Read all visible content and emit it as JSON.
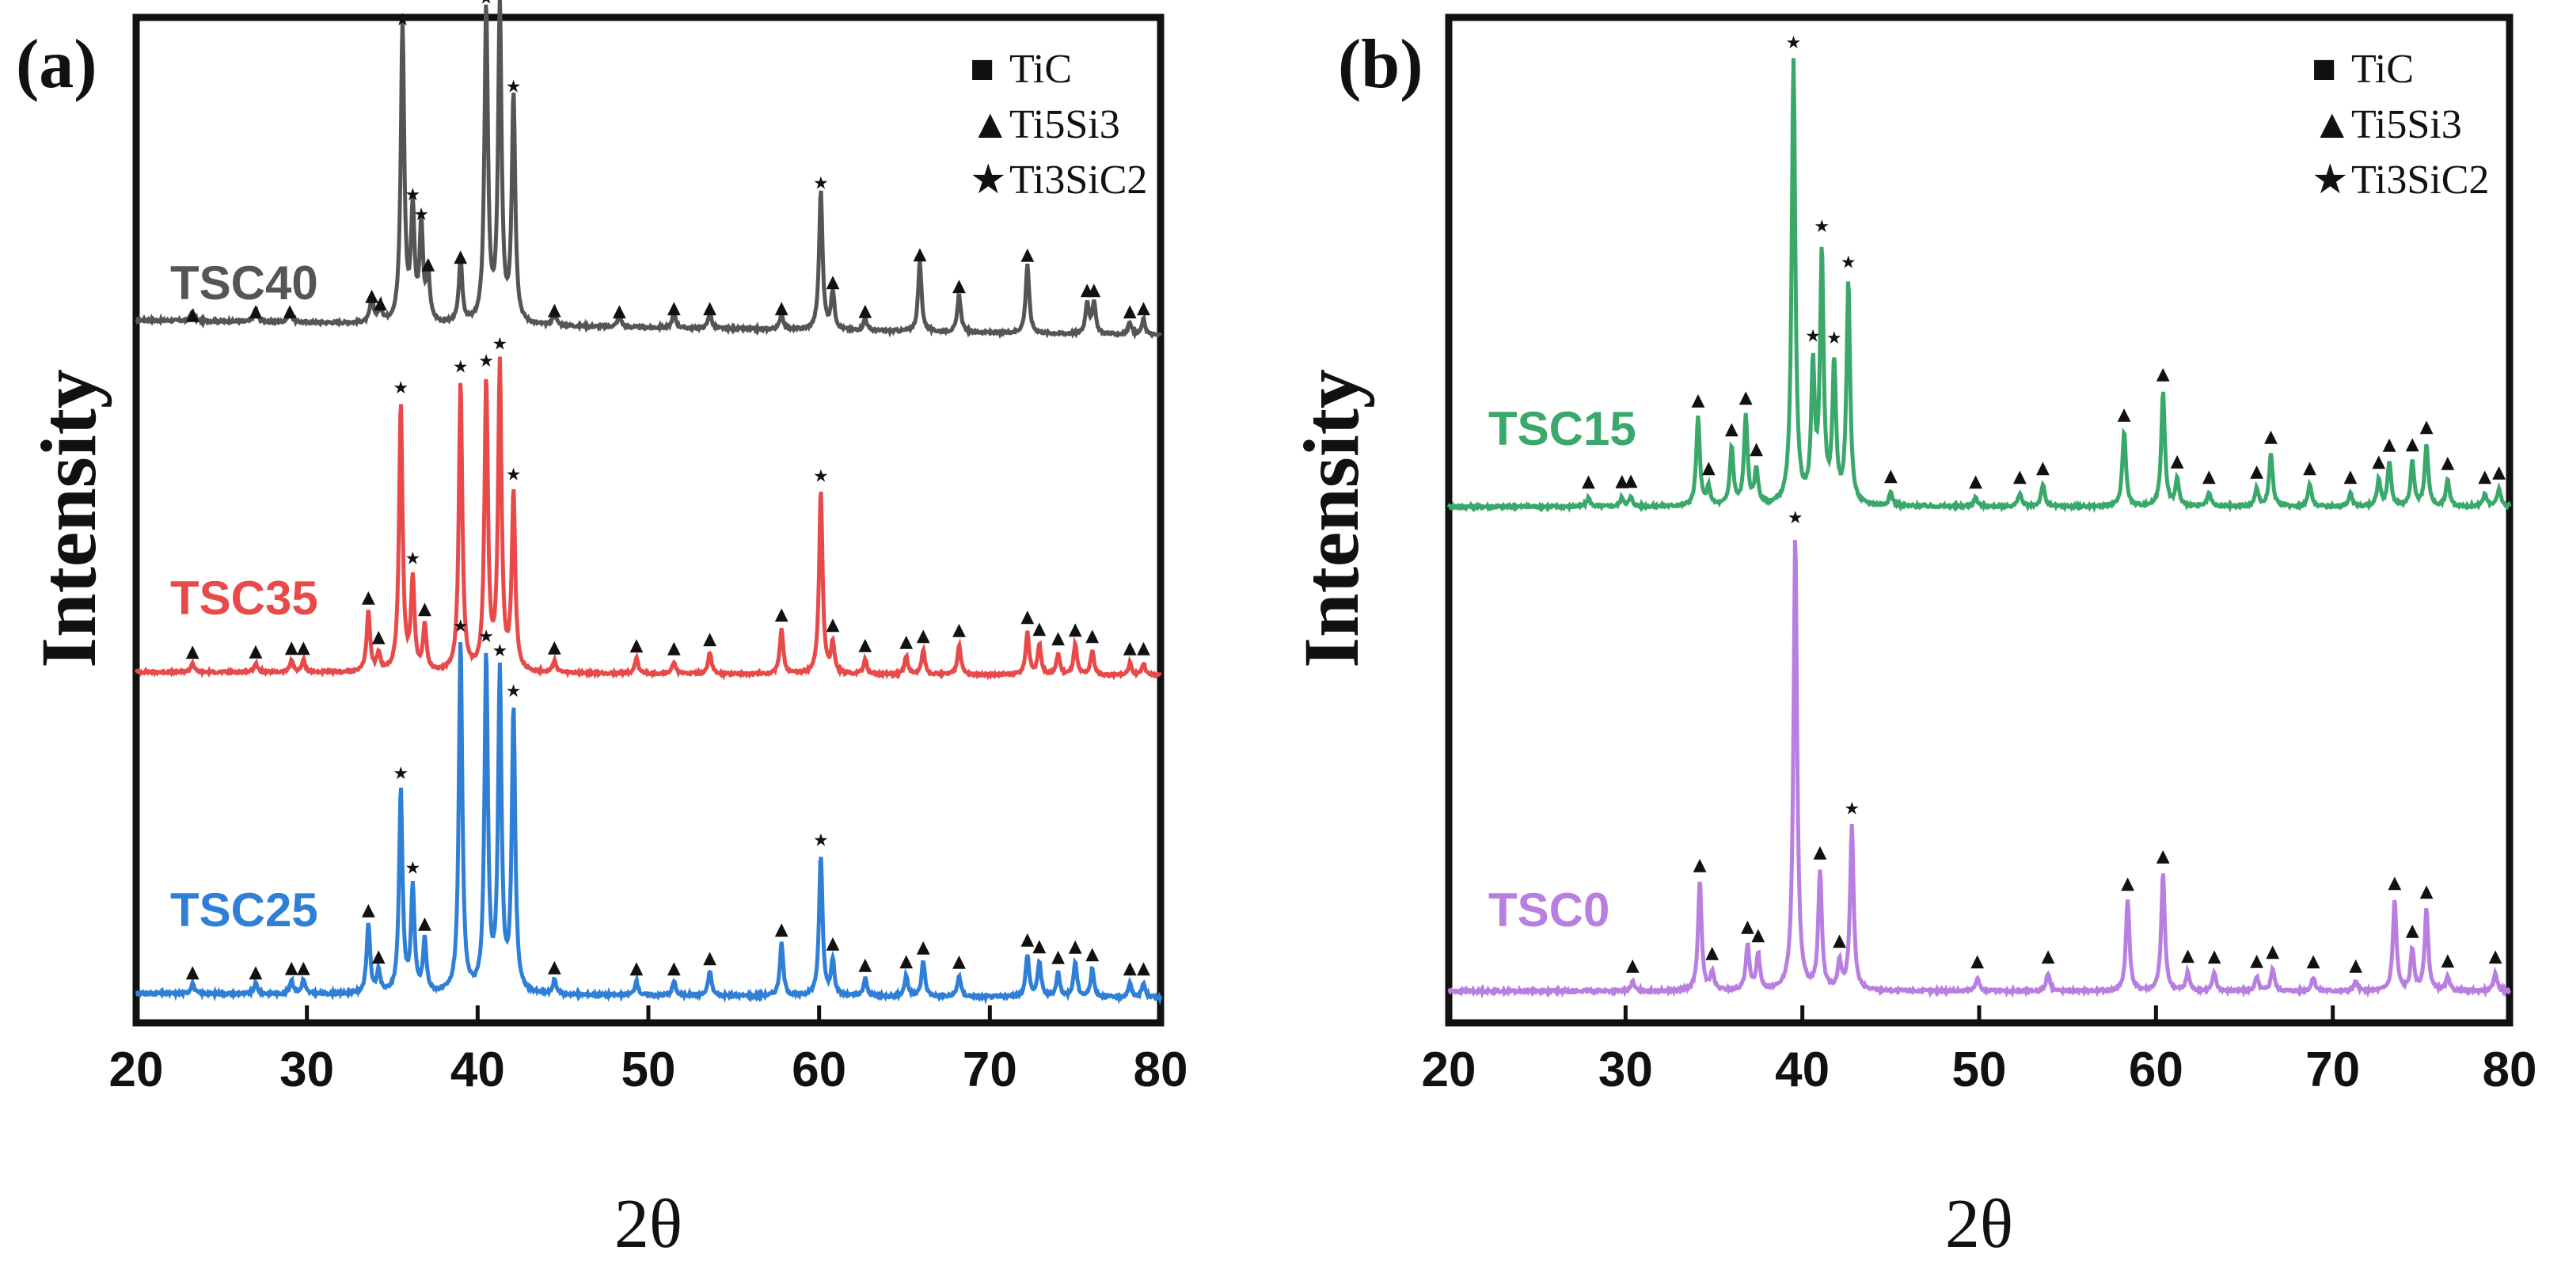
{
  "figure": {
    "panel_a_label": "(a)",
    "panel_b_label": "(b)"
  },
  "legend": {
    "tic": "TiC",
    "ti5si3": "Ti5Si3",
    "ti3sic2": "Ti3SiC2"
  },
  "markers": {
    "square": "■",
    "triangle": "▲",
    "star": "★"
  },
  "chart_data": [
    {
      "type": "line",
      "panel": "(a)",
      "xlabel": "2θ",
      "ylabel": "Intensity",
      "xlim": [
        20,
        80
      ],
      "xticks": [
        20,
        30,
        40,
        50,
        60,
        70,
        80
      ],
      "legend_placement": "top-right",
      "series": [
        {
          "name": "TSC40",
          "color": "#555555",
          "baseline": 0.08,
          "noise": 0.008,
          "peaks": [
            [
              23.3,
              0.03
            ],
            [
              27,
              0.04
            ],
            [
              29,
              0.04
            ],
            [
              33.8,
              0.08
            ],
            [
              34.3,
              0.05
            ],
            [
              35.6,
              0.94
            ],
            [
              36.2,
              0.35
            ],
            [
              36.7,
              0.3
            ],
            [
              37.1,
              0.15
            ],
            [
              39,
              0.2
            ],
            [
              40.5,
              1.0
            ],
            [
              41.3,
              1.0
            ],
            [
              42.1,
              0.72
            ],
            [
              44.5,
              0.04
            ],
            [
              48.3,
              0.04
            ],
            [
              51.5,
              0.05
            ],
            [
              53.6,
              0.05
            ],
            [
              57.8,
              0.05
            ],
            [
              60.1,
              0.44
            ],
            [
              60.8,
              0.12
            ],
            [
              62.7,
              0.04
            ],
            [
              65.9,
              0.22
            ],
            [
              68.2,
              0.12
            ],
            [
              72.2,
              0.22
            ],
            [
              75.7,
              0.1
            ],
            [
              76.1,
              0.1
            ],
            [
              78.2,
              0.04
            ],
            [
              79,
              0.05
            ]
          ]
        },
        {
          "name": "TSC35",
          "color": "#e84a4a",
          "baseline": 0.02,
          "noise": 0.008,
          "peaks": [
            [
              23.3,
              0.03
            ],
            [
              27,
              0.03
            ],
            [
              29.1,
              0.04
            ],
            [
              29.8,
              0.04
            ],
            [
              33.6,
              0.2
            ],
            [
              34.2,
              0.06
            ],
            [
              35.5,
              0.88
            ],
            [
              36.2,
              0.3
            ],
            [
              36.9,
              0.15
            ],
            [
              39,
              0.95
            ],
            [
              40.5,
              0.95
            ],
            [
              41.3,
              1.0
            ],
            [
              42.1,
              0.58
            ],
            [
              44.5,
              0.04
            ],
            [
              49.3,
              0.05
            ],
            [
              51.5,
              0.04
            ],
            [
              53.6,
              0.07
            ],
            [
              57.8,
              0.15
            ],
            [
              60.1,
              0.6
            ],
            [
              60.8,
              0.1
            ],
            [
              62.7,
              0.05
            ],
            [
              65.1,
              0.06
            ],
            [
              66.1,
              0.08
            ],
            [
              68.2,
              0.1
            ],
            [
              72.2,
              0.14
            ],
            [
              72.9,
              0.1
            ],
            [
              74,
              0.07
            ],
            [
              75,
              0.1
            ],
            [
              76,
              0.08
            ],
            [
              78.2,
              0.04
            ],
            [
              79,
              0.04
            ]
          ]
        },
        {
          "name": "TSC25",
          "color": "#2f7fd6",
          "baseline": 0.02,
          "noise": 0.008,
          "peaks": [
            [
              23.3,
              0.03
            ],
            [
              27,
              0.03
            ],
            [
              29.1,
              0.04
            ],
            [
              29.8,
              0.04
            ],
            [
              33.6,
              0.2
            ],
            [
              34.2,
              0.06
            ],
            [
              35.5,
              0.58
            ],
            [
              36.2,
              0.3
            ],
            [
              36.9,
              0.15
            ],
            [
              39,
              1.0
            ],
            [
              40.5,
              0.95
            ],
            [
              41.3,
              0.9
            ],
            [
              42.1,
              0.8
            ],
            [
              44.5,
              0.04
            ],
            [
              49.3,
              0.04
            ],
            [
              51.5,
              0.04
            ],
            [
              53.6,
              0.07
            ],
            [
              57.8,
              0.15
            ],
            [
              60.1,
              0.4
            ],
            [
              60.8,
              0.1
            ],
            [
              62.7,
              0.05
            ],
            [
              65.1,
              0.06
            ],
            [
              66.1,
              0.1
            ],
            [
              68.2,
              0.06
            ],
            [
              72.2,
              0.12
            ],
            [
              72.9,
              0.1
            ],
            [
              74,
              0.07
            ],
            [
              75,
              0.1
            ],
            [
              76,
              0.08
            ],
            [
              78.2,
              0.04
            ],
            [
              79,
              0.04
            ]
          ]
        }
      ]
    },
    {
      "type": "line",
      "panel": "(b)",
      "xlabel": "2θ",
      "ylabel": "Intensity",
      "xlim": [
        20,
        80
      ],
      "xticks": [
        20,
        30,
        40,
        50,
        60,
        70,
        80
      ],
      "legend_placement": "top-right",
      "series": [
        {
          "name": "TSC15",
          "color": "#3aa86b",
          "baseline": 0.0,
          "noise": 0.006,
          "peaks": [
            [
              27.9,
              0.02
            ],
            [
              29.8,
              0.02
            ],
            [
              30.3,
              0.02
            ],
            [
              34.1,
              0.2
            ],
            [
              34.7,
              0.04
            ],
            [
              36,
              0.13
            ],
            [
              36.8,
              0.2
            ],
            [
              37.4,
              0.08
            ],
            [
              39.5,
              1.0
            ],
            [
              40.6,
              0.3
            ],
            [
              41.1,
              0.56
            ],
            [
              41.8,
              0.31
            ],
            [
              42.6,
              0.5
            ],
            [
              45,
              0.03
            ],
            [
              49.8,
              0.02
            ],
            [
              52.3,
              0.03
            ],
            [
              53.6,
              0.05
            ],
            [
              58.2,
              0.17
            ],
            [
              60.4,
              0.26
            ],
            [
              61.2,
              0.06
            ],
            [
              63,
              0.03
            ],
            [
              65.7,
              0.04
            ],
            [
              66.5,
              0.12
            ],
            [
              68.7,
              0.05
            ],
            [
              71,
              0.03
            ],
            [
              72.6,
              0.06
            ],
            [
              73.2,
              0.1
            ],
            [
              74.5,
              0.1
            ],
            [
              75.3,
              0.14
            ],
            [
              76.5,
              0.06
            ],
            [
              78.6,
              0.03
            ],
            [
              79.4,
              0.04
            ]
          ]
        },
        {
          "name": "TSC0",
          "color": "#b97fe0",
          "baseline": 0.0,
          "noise": 0.006,
          "peaks": [
            [
              30.4,
              0.02
            ],
            [
              34.2,
              0.24
            ],
            [
              34.9,
              0.04
            ],
            [
              36.9,
              0.1
            ],
            [
              37.5,
              0.08
            ],
            [
              39.6,
              1.0
            ],
            [
              41,
              0.26
            ],
            [
              42.1,
              0.06
            ],
            [
              42.8,
              0.36
            ],
            [
              49.9,
              0.03
            ],
            [
              53.9,
              0.04
            ],
            [
              58.4,
              0.2
            ],
            [
              60.4,
              0.26
            ],
            [
              61.8,
              0.04
            ],
            [
              63.3,
              0.04
            ],
            [
              65.7,
              0.03
            ],
            [
              66.6,
              0.05
            ],
            [
              68.9,
              0.03
            ],
            [
              71.3,
              0.02
            ],
            [
              73.5,
              0.2
            ],
            [
              74.5,
              0.09
            ],
            [
              75.3,
              0.18
            ],
            [
              76.5,
              0.03
            ],
            [
              79.2,
              0.04
            ]
          ]
        }
      ]
    }
  ]
}
